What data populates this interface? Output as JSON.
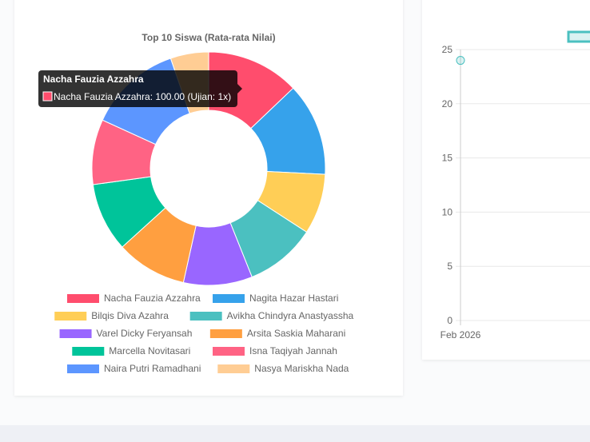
{
  "chart_data": [
    {
      "type": "pie",
      "title": "Top 10 Siswa (Rata-rata Nilai)",
      "categories": [
        "Nacha Fauzia Azzahra",
        "Nagita Hazar Hastari",
        "Bilqis Diva Azahra",
        "Avikha Chindyra Anastyassha",
        "Varel Dicky Feryansah",
        "Arsita Saskia Maharani",
        "Marcella Novitasari",
        "Isna Taqiyah Jannah",
        "Naira Putri Ramadhani",
        "Nasya Mariskha Nada"
      ],
      "values": [
        100,
        100,
        65,
        76,
        74,
        76,
        74,
        70,
        100,
        41
      ],
      "colors": [
        "#ff4d6d",
        "#36a2eb",
        "#ffce56",
        "#4bc0c0",
        "#9966ff",
        "#ff9f40",
        "#00c49a",
        "#ff6384",
        "#5c96ff",
        "#ffcd94"
      ],
      "legend": "bottom",
      "tooltip": {
        "title": "Nacha Fauzia Azzahra",
        "body": "Nacha Fauzia Azzahra: 100.00 (Ujian: 1x)"
      }
    },
    {
      "type": "line",
      "x": [
        "Feb 2026"
      ],
      "values": [
        24
      ],
      "ylim": [
        0,
        25
      ],
      "yticks": [
        "0",
        "5",
        "10",
        "15",
        "20",
        "25"
      ],
      "xticks": [
        "Feb 2026"
      ],
      "color": "#4bc0c0"
    }
  ]
}
